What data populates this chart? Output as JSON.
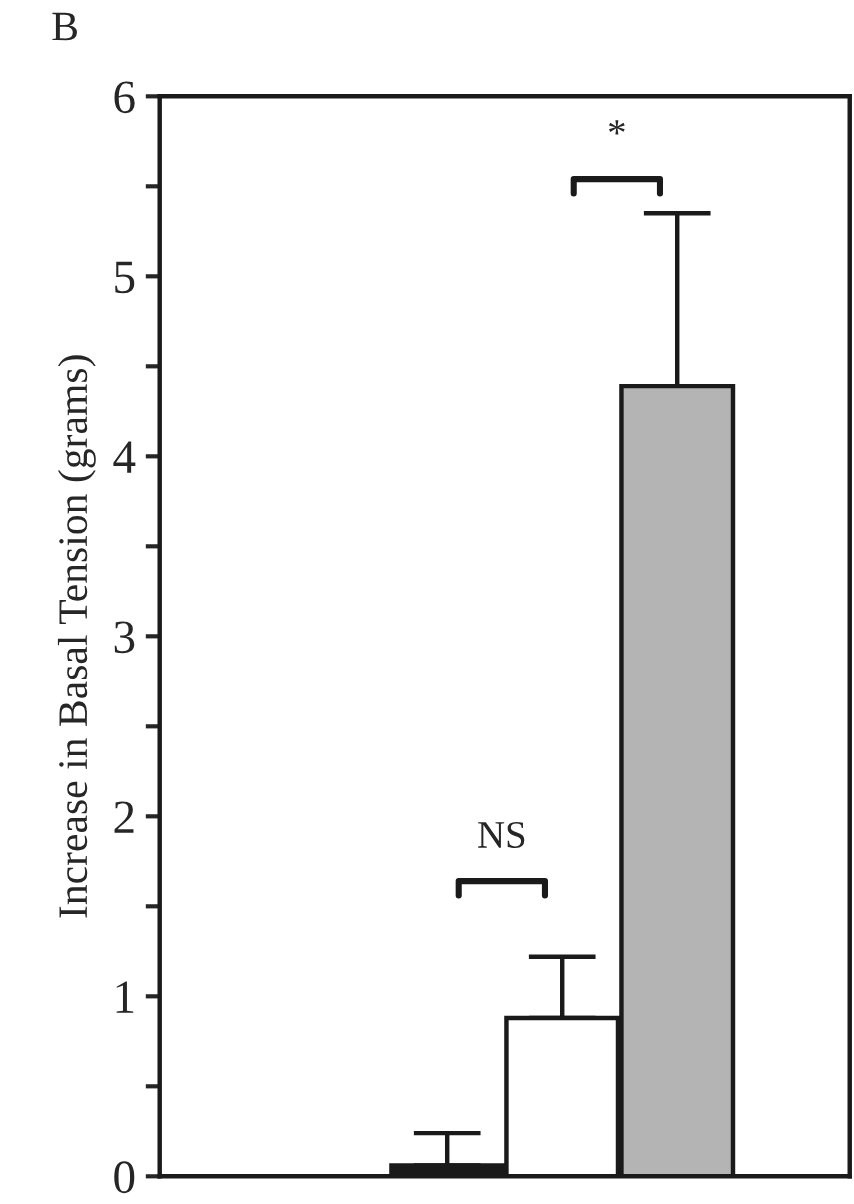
{
  "chart_data": {
    "type": "bar",
    "ylabel": "Increase in Basal Tension (grams)",
    "annotations": [
      "B",
      "NS",
      "*"
    ],
    "categories": [
      null,
      null,
      null,
      null,
      null,
      null
    ],
    "values": [
      null,
      null,
      0.06,
      0.88,
      4.39,
      null
    ],
    "errors": [
      null,
      null,
      [
        0.06,
        0.24
      ],
      [
        0.88,
        1.22
      ],
      [
        4.39,
        5.35
      ],
      null
    ],
    "colors": [
      null,
      null,
      "#1a1a1a",
      "#ffffff",
      "#b4b4b4",
      null
    ],
    "ylim": [
      0,
      6
    ],
    "yticks": [
      0,
      {
        "value": 0.5,
        "label": null
      },
      1,
      {
        "value": 1.5,
        "label": null
      },
      2,
      {
        "value": 2.5,
        "label": null
      },
      3,
      {
        "value": 3.5,
        "label": null
      },
      4,
      {
        "value": 4.5,
        "label": null
      },
      5,
      {
        "value": 5.5,
        "label": null
      },
      6
    ],
    "tick_labels": "y",
    "grid": false,
    "legend": false
  }
}
